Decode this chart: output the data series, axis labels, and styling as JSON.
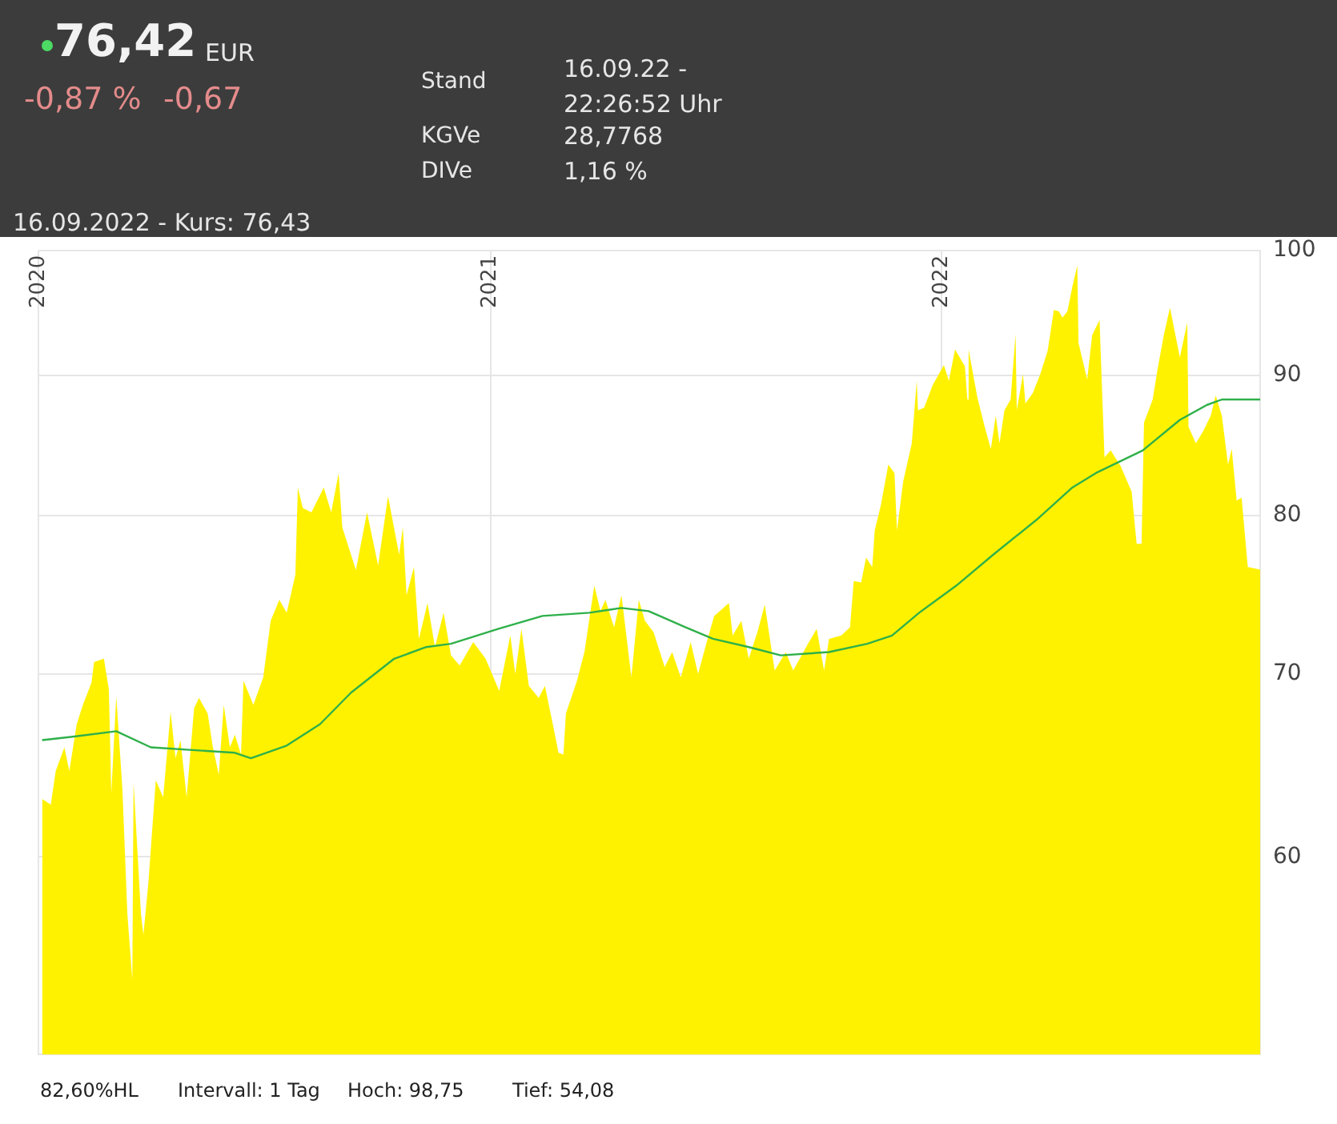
{
  "chart_data": {
    "type": "area",
    "annotations": [
      "76,42",
      "EUR",
      "-0,87 %",
      "-0,67",
      "Stand",
      "16.09.22 - 22:26:52 Uhr",
      "KGVe",
      "28,7768",
      "DIVe",
      "1,16 %",
      "16.09.2022  -  Kurs: 76,43",
      "82,60%HL",
      "Intervall: 1 Tag",
      "Hoch:  98,75",
      "Tief:  54,08"
    ],
    "xlim": [
      "2020-01-01",
      "2022-09-16"
    ],
    "xticks": [
      "2020",
      "2021",
      "2022"
    ],
    "ylim": [
      50.8,
      100
    ],
    "yticks": [
      60,
      70,
      80,
      90,
      100
    ],
    "log": "y",
    "grid": true,
    "legend": false,
    "series": [
      {
        "color": "#fff200",
        "x": [
          "2020-01-04",
          "2020-01-11",
          "2020-01-15",
          "2020-01-22",
          "2020-01-26",
          "2020-02-01",
          "2020-02-06",
          "2020-02-13",
          "2020-02-15",
          "2020-02-23",
          "2020-02-27",
          "2020-02-29",
          "2020-03-04",
          "2020-03-09",
          "2020-03-13",
          "2020-03-17",
          "2020-03-18",
          "2020-03-24",
          "2020-03-26",
          "2020-03-30",
          "2020-04-05",
          "2020-04-11",
          "2020-04-17",
          "2020-04-21",
          "2020-04-25",
          "2020-04-30",
          "2020-05-06",
          "2020-05-10",
          "2020-05-17",
          "2020-05-21",
          "2020-05-26",
          "2020-05-30",
          "2020-06-04",
          "2020-06-08",
          "2020-06-13",
          "2020-06-15",
          "2020-06-23",
          "2020-07-01",
          "2020-07-07",
          "2020-07-14",
          "2020-07-20",
          "2020-07-27",
          "2020-07-29",
          "2020-08-02",
          "2020-08-09",
          "2020-08-19",
          "2020-08-25",
          "2020-08-31",
          "2020-09-03",
          "2020-09-14",
          "2020-09-23",
          "2020-10-02",
          "2020-10-10",
          "2020-10-19",
          "2020-10-22",
          "2020-10-25",
          "2020-10-31",
          "2020-11-04",
          "2020-11-11",
          "2020-11-17",
          "2020-11-24",
          "2020-11-30",
          "2020-12-07",
          "2020-12-18",
          "2020-12-28",
          "2021-01-08",
          "2021-01-17",
          "2021-01-21",
          "2021-01-26",
          "2021-02-01",
          "2021-02-09",
          "2021-02-14",
          "2021-02-21",
          "2021-02-25",
          "2021-03-01",
          "2021-03-03",
          "2021-03-12",
          "2021-03-18",
          "2021-03-26",
          "2021-03-31",
          "2021-04-04",
          "2021-04-11",
          "2021-04-17",
          "2021-04-25",
          "2021-05-01",
          "2021-05-06",
          "2021-05-13",
          "2021-05-22",
          "2021-05-28",
          "2021-06-04",
          "2021-06-12",
          "2021-06-18",
          "2021-06-25",
          "2021-07-01",
          "2021-07-13",
          "2021-07-16",
          "2021-07-23",
          "2021-07-29",
          "2021-08-05",
          "2021-08-11",
          "2021-08-19",
          "2021-08-28",
          "2021-09-03",
          "2021-09-15",
          "2021-09-22",
          "2021-09-28",
          "2021-10-02",
          "2021-10-12",
          "2021-10-19",
          "2021-10-22",
          "2021-10-28",
          "2021-11-01",
          "2021-11-06",
          "2021-11-08",
          "2021-11-13",
          "2021-11-19",
          "2021-11-24",
          "2021-11-26",
          "2021-12-01",
          "2021-12-08",
          "2021-12-12",
          "2021-12-13",
          "2021-12-18",
          "2021-12-25",
          "2022-01-03",
          "2022-01-07",
          "2022-01-12",
          "2022-01-20",
          "2022-01-22",
          "2022-01-23",
          "2022-01-30",
          "2022-02-05",
          "2022-02-10",
          "2022-02-14",
          "2022-02-17",
          "2022-02-21",
          "2022-02-26",
          "2022-03-02",
          "2022-03-03",
          "2022-03-08",
          "2022-03-10",
          "2022-03-16",
          "2022-03-22",
          "2022-03-28",
          "2022-04-02",
          "2022-04-06",
          "2022-04-09",
          "2022-04-13",
          "2022-04-17",
          "2022-04-21",
          "2022-04-22",
          "2022-04-29",
          "2022-05-03",
          "2022-05-09",
          "2022-05-13",
          "2022-05-18",
          "2022-05-26",
          "2022-06-04",
          "2022-06-08",
          "2022-06-12",
          "2022-06-14",
          "2022-06-21",
          "2022-06-25",
          "2022-06-30",
          "2022-07-05",
          "2022-07-13",
          "2022-07-19",
          "2022-07-20",
          "2022-07-26",
          "2022-08-01",
          "2022-08-07",
          "2022-08-11",
          "2022-08-16",
          "2022-08-21",
          "2022-08-24",
          "2022-08-28",
          "2022-09-01",
          "2022-09-06",
          "2022-09-16"
        ],
        "values": [
          63.0,
          62.7,
          64.5,
          65.8,
          64.5,
          67.1,
          68.2,
          69.5,
          70.7,
          70.9,
          69.1,
          63.3,
          68.7,
          63.5,
          57.2,
          54.1,
          63.9,
          57.2,
          56.2,
          58.7,
          64.0,
          63.1,
          67.8,
          65.2,
          66.2,
          63.1,
          68.0,
          68.6,
          67.7,
          65.9,
          64.3,
          68.2,
          65.8,
          66.5,
          65.4,
          69.6,
          68.2,
          69.8,
          73.2,
          74.5,
          73.7,
          76.1,
          81.9,
          80.5,
          80.2,
          81.9,
          80.2,
          82.9,
          79.2,
          76.4,
          80.2,
          76.7,
          81.3,
          77.4,
          79.2,
          74.8,
          76.6,
          72.1,
          74.3,
          71.6,
          73.7,
          71.1,
          70.5,
          71.9,
          70.9,
          69.0,
          72.3,
          70.0,
          72.7,
          69.3,
          68.6,
          69.3,
          66.9,
          65.5,
          65.4,
          67.7,
          69.6,
          71.3,
          75.4,
          73.8,
          74.5,
          72.8,
          74.8,
          69.8,
          74.5,
          73.2,
          72.5,
          70.4,
          71.3,
          69.8,
          71.9,
          70.0,
          71.9,
          73.5,
          74.3,
          72.3,
          73.2,
          70.9,
          72.5,
          74.2,
          70.2,
          71.3,
          70.2,
          71.8,
          72.7,
          70.2,
          72.1,
          72.3,
          72.8,
          75.7,
          75.6,
          77.2,
          76.6,
          79.0,
          80.7,
          83.5,
          82.9,
          79.0,
          82.3,
          85.0,
          89.6,
          87.4,
          87.6,
          89.3,
          90.8,
          89.6,
          92.0,
          90.7,
          88.2,
          92.0,
          88.4,
          86.2,
          84.6,
          87.0,
          85.0,
          87.4,
          88.2,
          93.2,
          87.4,
          90.1,
          87.9,
          88.7,
          90.1,
          91.9,
          95.1,
          95.0,
          94.5,
          95.0,
          97.0,
          98.75,
          92.5,
          89.7,
          93.1,
          94.3,
          84.0,
          84.5,
          83.4,
          81.6,
          78.1,
          78.1,
          86.5,
          88.2,
          90.5,
          93.1,
          95.3,
          91.4,
          94.1,
          86.2,
          85.0,
          85.9,
          87.0,
          88.5,
          87.0,
          83.5,
          84.6,
          81.0,
          81.2,
          76.6,
          76.43
        ]
      },
      {
        "type": "line",
        "color": "#2fb04a",
        "x": [
          "2020-01-04",
          "2020-01-30",
          "2020-03-04",
          "2020-04-01",
          "2020-06-08",
          "2020-06-21",
          "2020-07-20",
          "2020-08-16",
          "2020-09-10",
          "2020-10-15",
          "2020-11-10",
          "2020-11-30",
          "2021-01-07",
          "2021-02-12",
          "2021-03-22",
          "2021-04-17",
          "2021-05-09",
          "2021-06-08",
          "2021-06-30",
          "2021-07-29",
          "2021-08-24",
          "2021-10-02",
          "2021-11-02",
          "2021-11-22",
          "2021-12-14",
          "2022-01-13",
          "2022-02-12",
          "2022-03-19",
          "2022-04-17",
          "2022-05-06",
          "2022-06-13",
          "2022-07-13",
          "2022-08-04",
          "2022-08-16",
          "2022-09-16"
        ],
        "values": [
          66.2,
          66.4,
          66.7,
          65.8,
          65.5,
          65.2,
          65.9,
          67.1,
          68.9,
          70.9,
          71.6,
          71.8,
          72.7,
          73.5,
          73.7,
          74.0,
          73.8,
          72.8,
          72.1,
          71.6,
          71.1,
          71.3,
          71.8,
          72.3,
          73.7,
          75.4,
          77.4,
          79.7,
          81.9,
          82.9,
          84.5,
          86.7,
          87.8,
          88.2,
          88.2
        ]
      }
    ]
  }
}
